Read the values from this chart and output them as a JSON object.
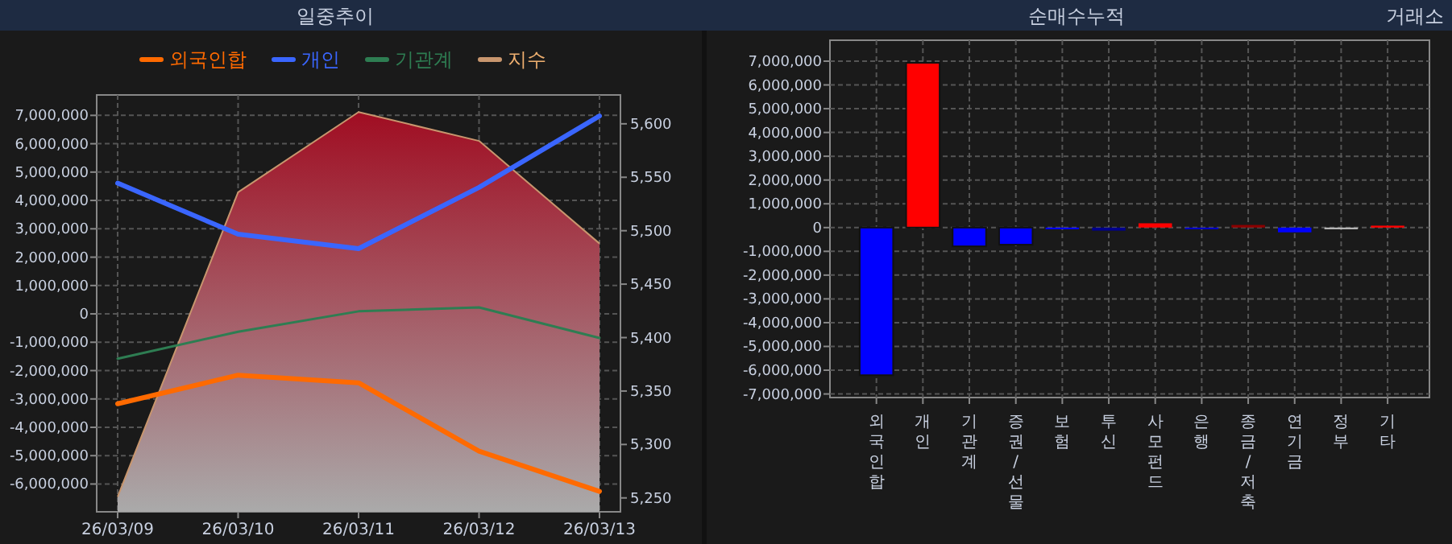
{
  "chart_data": [
    {
      "type": "line",
      "title": "일중추이",
      "categories": [
        "26/03/09",
        "26/03/10",
        "26/03/11",
        "26/03/12",
        "26/03/13"
      ],
      "ylim": [
        -6980000,
        7720000
      ],
      "yticks": [
        {
          "value": -6000000,
          "label": "-6,000,000"
        },
        {
          "value": -5000000,
          "label": "-5,000,000"
        },
        {
          "value": -4000000,
          "label": "-4,000,000"
        },
        {
          "value": -3000000,
          "label": "-3,000,000"
        },
        {
          "value": -2000000,
          "label": "-2,000,000"
        },
        {
          "value": -1000000,
          "label": "-1,000,000"
        },
        0,
        {
          "value": 1000000,
          "label": "1,000,000"
        },
        {
          "value": 2000000,
          "label": "2,000,000"
        },
        {
          "value": 3000000,
          "label": "3,000,000"
        },
        {
          "value": 4000000,
          "label": "4,000,000"
        },
        {
          "value": 5000000,
          "label": "5,000,000"
        },
        {
          "value": 6000000,
          "label": "6,000,000"
        },
        {
          "value": 7000000,
          "label": "7,000,000"
        }
      ],
      "y2lim": [
        5237,
        5627
      ],
      "y2ticks": [
        {
          "value": 5250,
          "label": "5,250"
        },
        {
          "value": 5300,
          "label": "5,300"
        },
        {
          "value": 5350,
          "label": "5,350"
        },
        {
          "value": 5400,
          "label": "5,400"
        },
        {
          "value": 5450,
          "label": "5,450"
        },
        {
          "value": 5500,
          "label": "5,500"
        },
        {
          "value": 5550,
          "label": "5,550"
        },
        {
          "value": 5600,
          "label": "5,600"
        }
      ],
      "grid": true,
      "legend": "top",
      "line_style": "solid",
      "marker": "none",
      "series": [
        {
          "name": "지수",
          "type": "area",
          "axis": "y2",
          "color": "#c8966e",
          "values": [
            5251,
            5536,
            5611,
            5584,
            5488
          ]
        },
        {
          "name": "외국인합",
          "color": "#ff6a00",
          "values": [
            -3170000,
            -2160000,
            -2430000,
            -4840000,
            -6260000
          ]
        },
        {
          "name": "개인",
          "color": "#3a66ff",
          "values": [
            4610000,
            2810000,
            2300000,
            4460000,
            6980000
          ]
        },
        {
          "name": "기관계",
          "color": "#2e7d52",
          "values": [
            -1580000,
            -630000,
            90000,
            230000,
            -850000
          ]
        }
      ]
    },
    {
      "type": "bar",
      "title": "순매수누적",
      "annotations": [
        "거래소"
      ],
      "categories": [
        "외국인합",
        "개인",
        "기관계",
        "증권/선물",
        "보험",
        "투신",
        "사모펀드",
        "은행",
        "종금/저축",
        "연기금",
        "정부",
        "기타"
      ],
      "values": [
        -6210000,
        6930000,
        -790000,
        -720000,
        -70000,
        -130000,
        180000,
        -70000,
        110000,
        -200000,
        -70000,
        80000
      ],
      "colors": [
        "#0000ff",
        "#ff0000",
        "#0000ff",
        "#0000ff",
        "#0000ff",
        "#00008b",
        "#ff0000",
        "#0000cd",
        "#8b0000",
        "#0000ff",
        "#c0c0c0",
        "#ff0000"
      ],
      "ylim": [
        -7150000,
        7880000
      ],
      "yticks": [
        {
          "value": -7000000,
          "label": "-7,000,000"
        },
        {
          "value": -6000000,
          "label": "-6,000,000"
        },
        {
          "value": -5000000,
          "label": "-5,000,000"
        },
        {
          "value": -4000000,
          "label": "-4,000,000"
        },
        {
          "value": -3000000,
          "label": "-3,000,000"
        },
        {
          "value": -2000000,
          "label": "-2,000,000"
        },
        {
          "value": -1000000,
          "label": "-1,000,000"
        },
        0,
        {
          "value": 1000000,
          "label": "1,000,000"
        },
        {
          "value": 2000000,
          "label": "2,000,000"
        },
        {
          "value": 3000000,
          "label": "3,000,000"
        },
        {
          "value": 4000000,
          "label": "4,000,000"
        },
        {
          "value": 5000000,
          "label": "5,000,000"
        },
        {
          "value": 6000000,
          "label": "6,000,000"
        },
        {
          "value": 7000000,
          "label": "7,000,000"
        }
      ],
      "grid": true
    }
  ]
}
